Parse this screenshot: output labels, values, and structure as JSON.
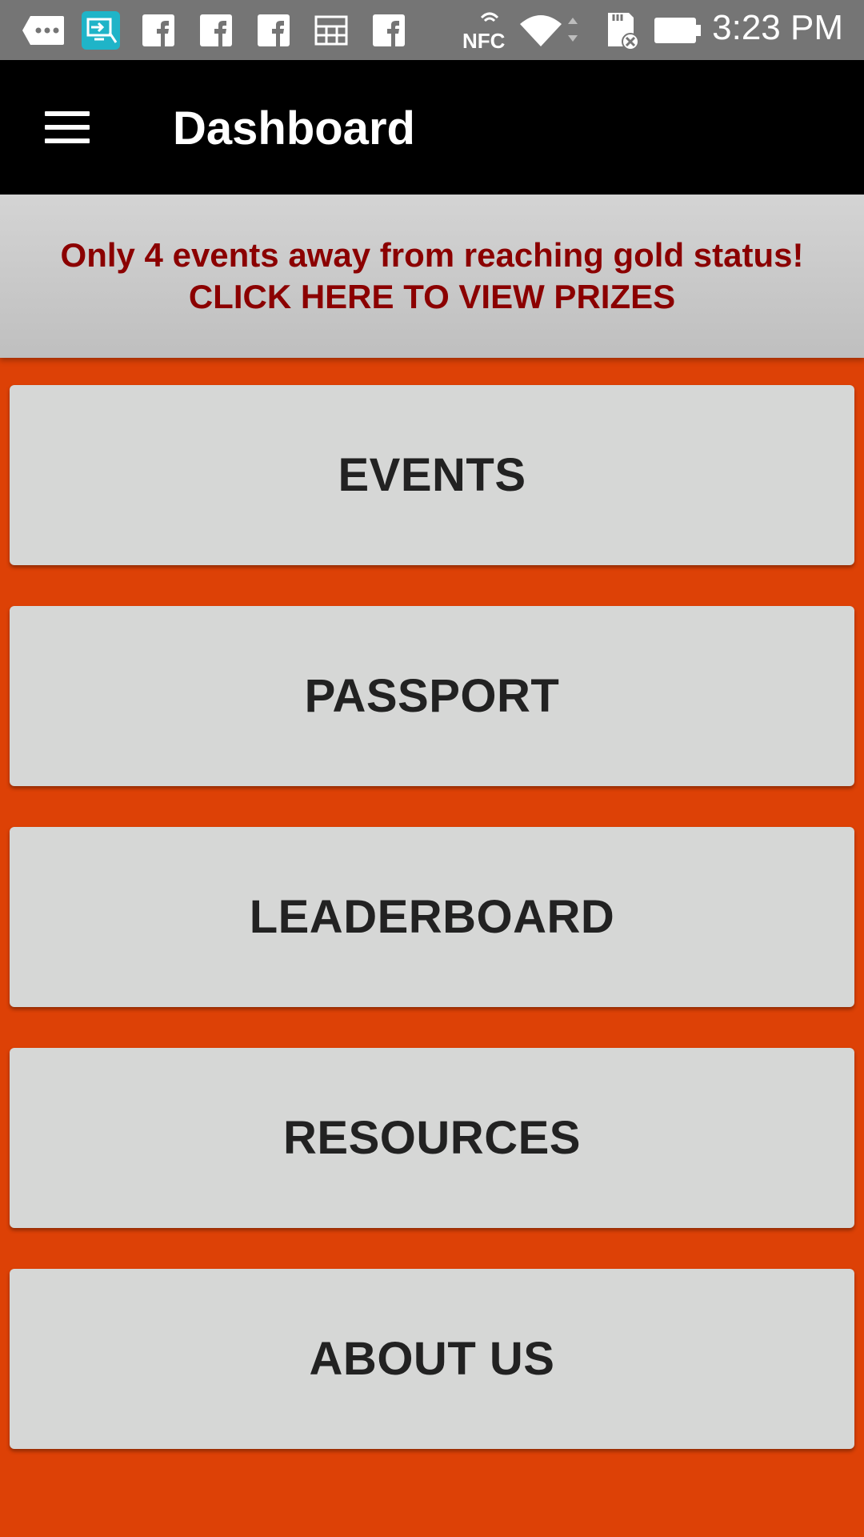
{
  "status_bar": {
    "time": "3:23 PM",
    "nfc_label": "NFC",
    "icons": [
      "more-icon",
      "screen-cast-icon",
      "facebook-icon",
      "facebook-icon",
      "facebook-icon",
      "grid-icon",
      "facebook-icon",
      "nfc-icon",
      "wifi-icon",
      "sd-card-icon",
      "battery-icon"
    ]
  },
  "app_bar": {
    "title": "Dashboard",
    "menu_icon": "hamburger-menu-icon"
  },
  "banner": {
    "line1": "Only 4 events away from reaching gold status!",
    "line2": "CLICK HERE TO VIEW PRIZES",
    "text_color": "#8b0000"
  },
  "menu": {
    "items": [
      {
        "label": "EVENTS"
      },
      {
        "label": "PASSPORT"
      },
      {
        "label": "LEADERBOARD"
      },
      {
        "label": "RESOURCES"
      },
      {
        "label": "ABOUT US"
      }
    ]
  },
  "colors": {
    "background": "#dd4106",
    "app_bar": "#000000",
    "button": "#d6d7d6",
    "status_bar": "#757575"
  }
}
